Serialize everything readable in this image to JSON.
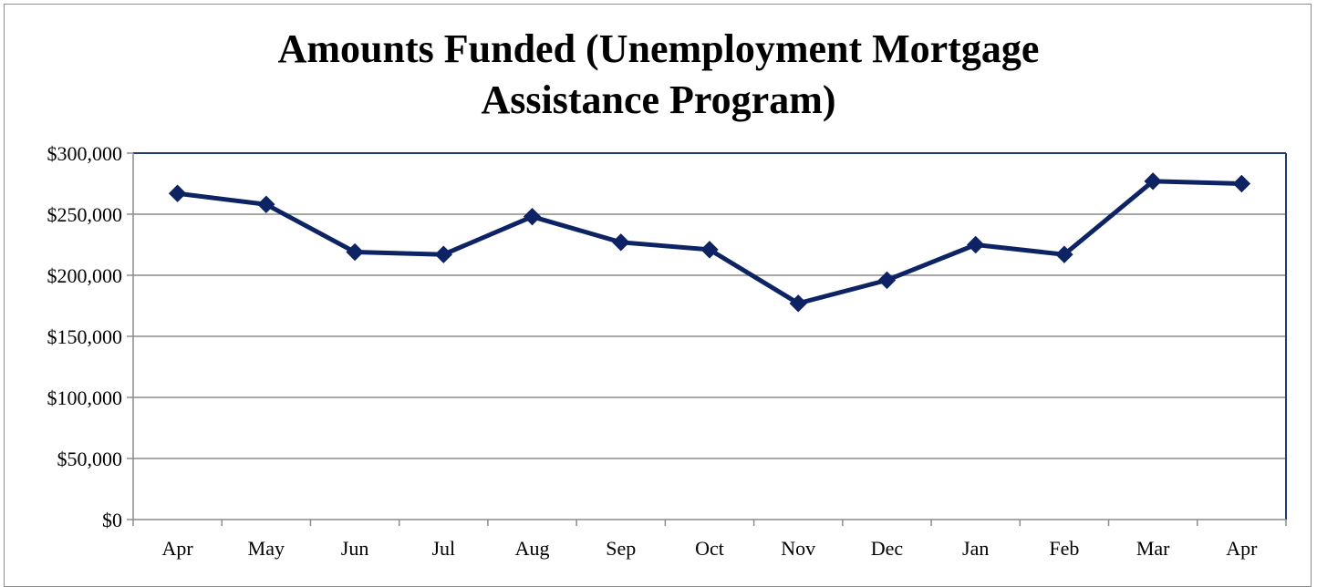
{
  "chart_data": {
    "type": "line",
    "title": "Amounts Funded (Unemployment Mortgage Assistance Program)",
    "title_lines": [
      "Amounts Funded (Unemployment Mortgage",
      "Assistance Program)"
    ],
    "xlabel": "",
    "ylabel": "",
    "categories": [
      "Apr",
      "May",
      "Jun",
      "Jul",
      "Aug",
      "Sep",
      "Oct",
      "Nov",
      "Dec",
      "Jan",
      "Feb",
      "Mar",
      "Apr"
    ],
    "series": [
      {
        "values": [
          267000,
          258000,
          219000,
          217000,
          248000,
          227000,
          221000,
          177000,
          196000,
          225000,
          217000,
          277000,
          275000
        ],
        "color": "#0e2363",
        "marker": "diamond"
      }
    ],
    "ylim": [
      0,
      300000
    ],
    "yticks": [
      0,
      50000,
      100000,
      150000,
      200000,
      250000,
      300000
    ],
    "ytick_labels": [
      "$0",
      "$50,000",
      "$100,000",
      "$150,000",
      "$200,000",
      "$250,000",
      "$300,000"
    ],
    "grid": true,
    "legend": "none",
    "colors": {
      "line": "#0e2363",
      "plot_border": "#1f3b74",
      "grid": "#8c8c8c",
      "frame": "#8c8c8c"
    }
  }
}
